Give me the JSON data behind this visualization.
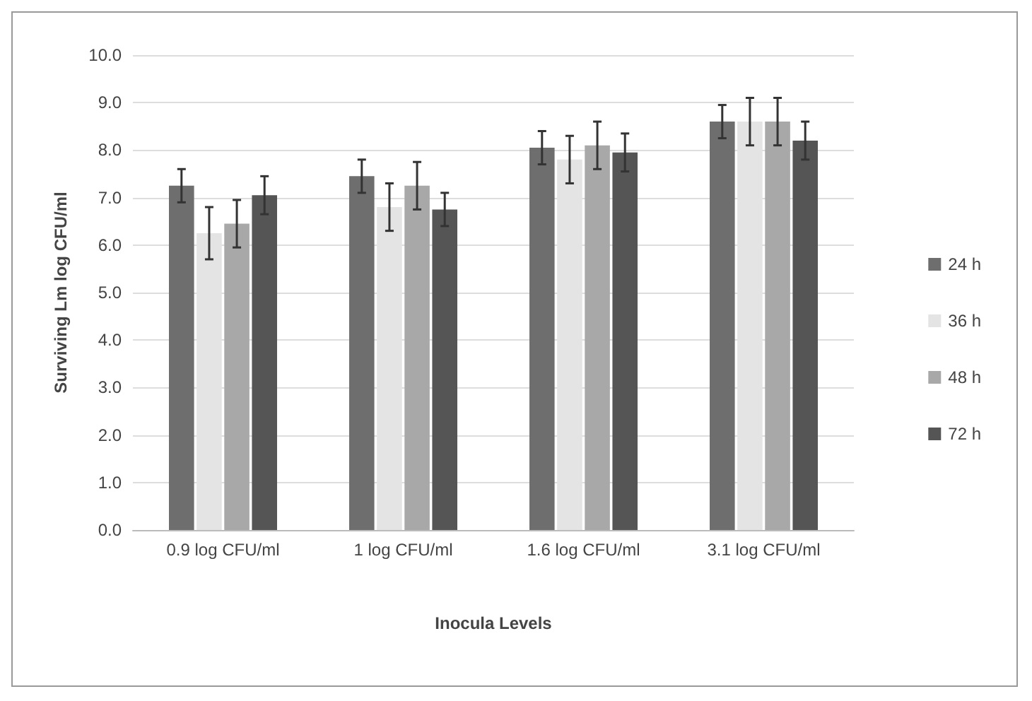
{
  "chart_data": {
    "type": "bar",
    "xlabel": "Inocula Levels",
    "ylabel": "Surviving Lm log CFU/ml",
    "categories": [
      "0.9 log CFU/ml",
      "1 log CFU/ml",
      "1.6 log CFU/ml",
      "3.1 log CFU/ml"
    ],
    "series": [
      {
        "name": "24 h",
        "color": "#6e6e6e",
        "values": [
          7.25,
          7.45,
          8.05,
          8.6
        ],
        "errors": [
          0.35,
          0.35,
          0.35,
          0.35
        ]
      },
      {
        "name": "36 h",
        "color": "#e4e4e4",
        "values": [
          6.25,
          6.8,
          7.8,
          8.6
        ],
        "errors": [
          0.55,
          0.5,
          0.5,
          0.5
        ]
      },
      {
        "name": "48 h",
        "color": "#a8a8a8",
        "values": [
          6.45,
          7.25,
          8.1,
          8.6
        ],
        "errors": [
          0.5,
          0.5,
          0.5,
          0.5
        ]
      },
      {
        "name": "72 h",
        "color": "#555555",
        "values": [
          7.05,
          6.75,
          7.95,
          8.2
        ],
        "errors": [
          0.4,
          0.35,
          0.4,
          0.4
        ]
      }
    ],
    "ylim": [
      0,
      10
    ],
    "yticks": [
      {
        "value": 0,
        "label": "0.0"
      },
      {
        "value": 1,
        "label": "1.0"
      },
      {
        "value": 2,
        "label": "2.0"
      },
      {
        "value": 3,
        "label": "3.0"
      },
      {
        "value": 4,
        "label": "4.0"
      },
      {
        "value": 5,
        "label": "5.0"
      },
      {
        "value": 6,
        "label": "6.0"
      },
      {
        "value": 7,
        "label": "7.0"
      },
      {
        "value": 8,
        "label": "8.0"
      },
      {
        "value": 9,
        "label": "9.0"
      },
      {
        "value": 10,
        "label": "10.0"
      }
    ],
    "grid": "y",
    "legend": "right"
  }
}
